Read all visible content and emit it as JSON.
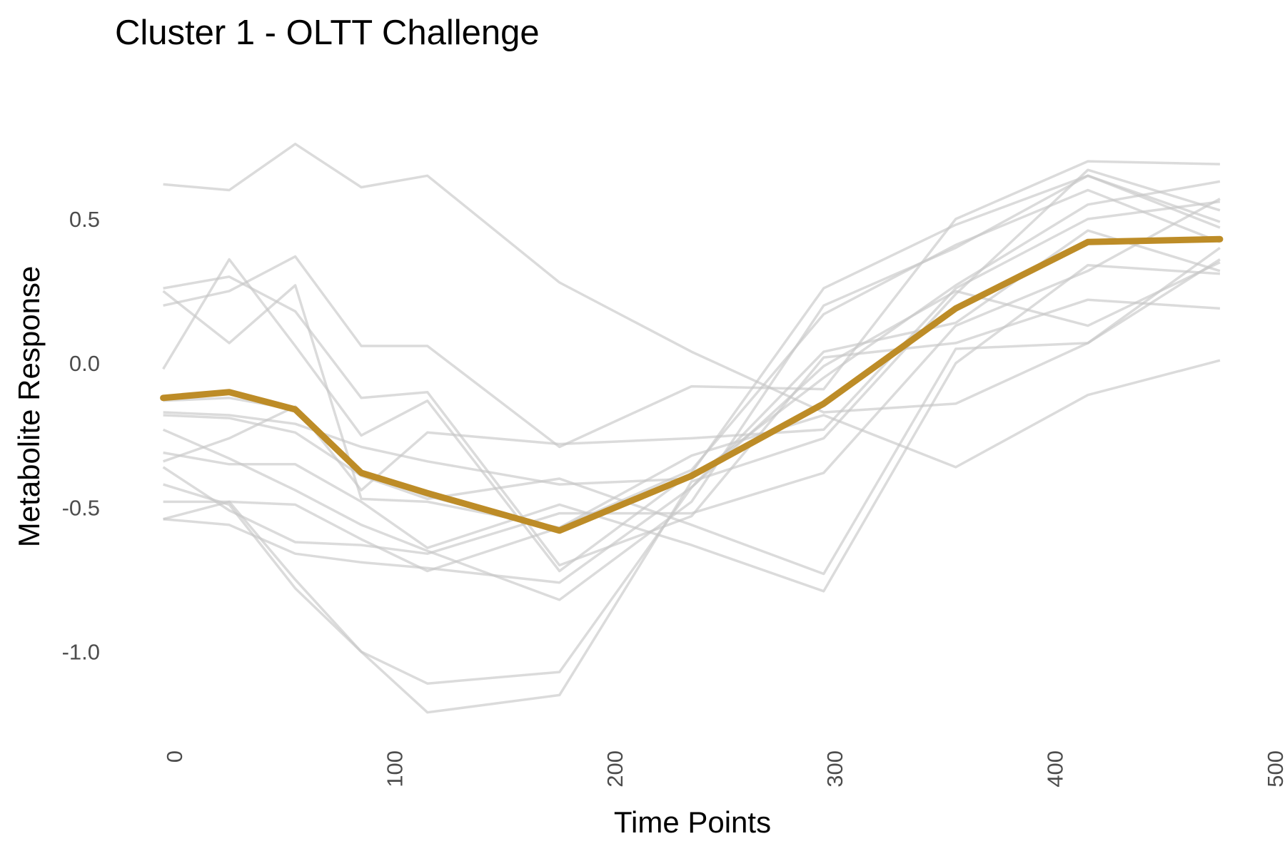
{
  "chart_data": {
    "type": "line",
    "title": "Cluster 1 - OLTT Challenge",
    "xlabel": "Time Points",
    "ylabel": "Metabolite Response",
    "xlim": [
      0,
      500
    ],
    "ylim": [
      -1.28,
      0.94
    ],
    "x_ticks": [
      0,
      100,
      200,
      300,
      400,
      500
    ],
    "x_tick_labels": [
      "0",
      "100",
      "200",
      "300",
      "400",
      "500"
    ],
    "y_ticks": [
      -1.0,
      -0.5,
      0.0,
      0.5
    ],
    "y_tick_labels": [
      "-1.0",
      "-0.5",
      "0.0",
      "0.5"
    ],
    "grid": false,
    "legend": "none",
    "colors": {
      "mean": "#bd8c27",
      "individual": "#c8c8c8"
    },
    "x": [
      -5,
      25,
      55,
      85,
      115,
      175,
      235,
      295,
      355,
      415,
      475
    ],
    "series": [
      {
        "values": [
          0.62,
          0.6,
          0.76,
          0.61,
          0.65,
          0.28,
          0.04,
          -0.17,
          -0.14,
          0.07,
          0.36
        ]
      },
      {
        "values": [
          0.26,
          0.3,
          0.18,
          -0.12,
          -0.1,
          -0.7,
          -0.53,
          0.02,
          0.07,
          0.22,
          0.19
        ]
      },
      {
        "values": [
          0.2,
          0.25,
          0.37,
          0.06,
          0.06,
          -0.29,
          -0.08,
          -0.09,
          0.5,
          0.7,
          0.69
        ]
      },
      {
        "values": [
          -0.02,
          0.36,
          0.06,
          -0.25,
          -0.13,
          -0.72,
          -0.38,
          0.26,
          0.48,
          0.65,
          0.49
        ]
      },
      {
        "values": [
          0.25,
          0.07,
          0.27,
          -0.47,
          -0.48,
          -0.57,
          -0.37,
          0.17,
          0.41,
          0.6,
          0.42
        ]
      },
      {
        "values": [
          -0.13,
          -0.12,
          -0.16,
          -0.38,
          -0.46,
          -0.58,
          -0.39,
          -0.14,
          0.19,
          0.42,
          0.43
        ]
      },
      {
        "values": [
          -0.17,
          -0.18,
          -0.21,
          -0.29,
          -0.34,
          -0.42,
          -0.4,
          -0.05,
          0.27,
          0.55,
          0.63
        ]
      },
      {
        "values": [
          -0.18,
          -0.19,
          -0.24,
          -0.39,
          -0.47,
          -0.4,
          -0.56,
          -0.73,
          0.05,
          0.07,
          0.4
        ]
      },
      {
        "values": [
          -0.23,
          -0.33,
          -0.44,
          -0.56,
          -0.65,
          -0.82,
          -0.48,
          0.2,
          0.4,
          0.65,
          0.47
        ]
      },
      {
        "values": [
          -0.31,
          -0.35,
          -0.35,
          -0.48,
          -0.64,
          -0.49,
          -0.63,
          -0.79,
          0.0,
          0.34,
          0.31
        ]
      },
      {
        "values": [
          -0.34,
          -0.26,
          -0.15,
          -0.44,
          -0.24,
          -0.28,
          -0.26,
          -0.23,
          0.26,
          0.5,
          0.56
        ]
      },
      {
        "values": [
          -0.36,
          -0.51,
          -0.62,
          -0.63,
          -0.66,
          -0.52,
          -0.52,
          -0.38,
          0.13,
          0.32,
          0.57
        ]
      },
      {
        "values": [
          -0.42,
          -0.49,
          -0.78,
          -1.0,
          -1.11,
          -1.07,
          -0.43,
          0.04,
          0.14,
          0.46,
          0.32
        ]
      },
      {
        "values": [
          -0.48,
          -0.48,
          -0.75,
          -1.0,
          -1.21,
          -1.15,
          -0.41,
          -0.26,
          0.24,
          0.67,
          0.53
        ]
      },
      {
        "values": [
          -0.54,
          -0.56,
          -0.66,
          -0.69,
          -0.71,
          -0.76,
          -0.43,
          -0.01,
          0.25,
          0.13,
          0.35
        ]
      },
      {
        "values": [
          -0.54,
          -0.48,
          -0.49,
          -0.61,
          -0.72,
          -0.57,
          -0.32,
          -0.18,
          -0.36,
          -0.11,
          0.01
        ]
      }
    ],
    "mean_series": {
      "values": [
        -0.12,
        -0.1,
        -0.16,
        -0.38,
        -0.45,
        -0.58,
        -0.39,
        -0.14,
        0.19,
        0.42,
        0.43
      ]
    }
  }
}
